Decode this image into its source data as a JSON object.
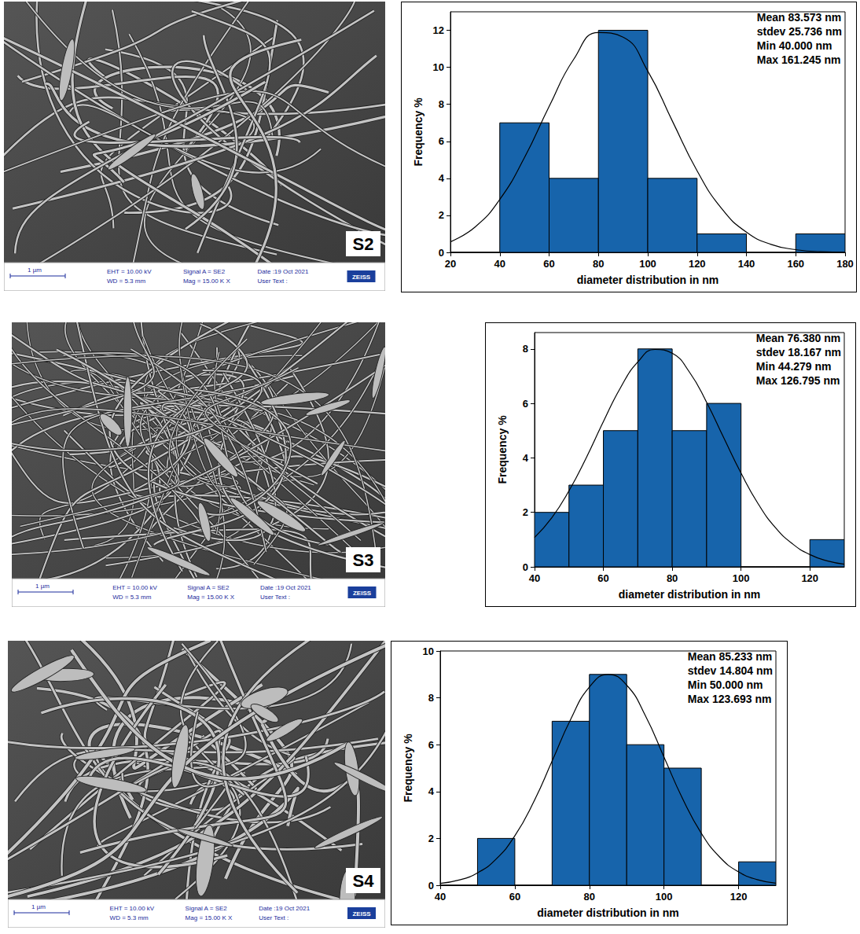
{
  "images": [
    {
      "label": "S2",
      "scale_bar": "1 µm",
      "info": [
        "EHT = 10.00 kV",
        "WD = 5.3 mm",
        "Signal A = SE2",
        "Mag = 15.00 K X",
        "Date :19 Oct 2021",
        "User Text :"
      ],
      "logo": "ZEISS"
    },
    {
      "label": "S3",
      "scale_bar": "1 µm",
      "info": [
        "EHT = 10.00 kV",
        "WD = 5.3 mm",
        "Signal A = SE2",
        "Mag = 15.00 K X",
        "Date :19 Oct 2021",
        "User Text :"
      ],
      "logo": "ZEISS"
    },
    {
      "label": "S4",
      "scale_bar": "1 µm",
      "info": [
        "EHT = 10.00 kV",
        "WD = 5.3 mm",
        "Signal A = SE2",
        "Mag = 15.00 K X",
        "Date :19 Oct 2021",
        "User Text :"
      ],
      "logo": "ZEISS"
    }
  ],
  "chart_data": [
    {
      "type": "histogram",
      "bins": [
        20,
        40,
        60,
        80,
        100,
        120,
        140,
        160,
        180
      ],
      "counts": [
        0,
        7,
        4,
        12,
        4,
        1,
        0,
        1
      ],
      "color": "#1764ab",
      "curve": {
        "x": [
          20,
          30,
          40,
          50,
          60,
          70,
          80,
          90,
          100,
          110,
          120,
          130,
          140,
          150,
          160,
          170,
          180
        ],
        "y": [
          0.57,
          1.37,
          2.86,
          5.12,
          7.88,
          10.44,
          11.88,
          11.63,
          9.8,
          7.09,
          4.41,
          2.36,
          1.09,
          0.43,
          0.15,
          0.04,
          0.01
        ]
      },
      "stats": [
        "Mean 83.573 nm",
        "stdev 25.736 nm",
        "Min 40.000 nm",
        "Max 161.245 nm"
      ],
      "x_label": "diameter distribution in nm",
      "y_label": "Frequency %",
      "xlim": [
        20,
        180
      ],
      "xticks": [
        20,
        40,
        60,
        80,
        100,
        120,
        140,
        160,
        180
      ],
      "ylim": [
        0,
        13
      ],
      "yticks": [
        0,
        2,
        4,
        6,
        8,
        10,
        12
      ]
    },
    {
      "type": "histogram",
      "bins": [
        40,
        50,
        60,
        70,
        80,
        90,
        100,
        110,
        120,
        130
      ],
      "counts": [
        2,
        3,
        5,
        8,
        5,
        6,
        0,
        0,
        1
      ],
      "color": "#1764ab",
      "curve": {
        "x": [
          40,
          45,
          50,
          55,
          60,
          65,
          70,
          75,
          80,
          85,
          90,
          95,
          100,
          105,
          110,
          115,
          120,
          125,
          130
        ],
        "y": [
          1.08,
          1.8,
          2.79,
          4.0,
          5.33,
          6.58,
          7.52,
          7.98,
          7.84,
          7.15,
          6.04,
          4.73,
          3.44,
          2.31,
          1.44,
          0.84,
          0.45,
          0.22,
          0.1
        ]
      },
      "stats": [
        "Mean 76.380 nm",
        "stdev 18.167 nm",
        "Min 44.279 nm",
        "Max 126.795 nm"
      ],
      "x_label": "diameter distribution in nm",
      "y_label": "Frequency %",
      "xlim": [
        40,
        130
      ],
      "xticks": [
        40,
        60,
        80,
        100,
        120
      ],
      "ylim": [
        0,
        8.6
      ],
      "yticks": [
        0,
        2,
        4,
        6,
        8
      ]
    },
    {
      "type": "histogram",
      "bins": [
        40,
        50,
        60,
        70,
        80,
        90,
        100,
        110,
        120,
        130
      ],
      "counts": [
        0,
        2,
        0,
        7,
        9,
        6,
        5,
        0,
        1
      ],
      "color": "#1764ab",
      "curve": {
        "x": [
          40,
          45,
          50,
          55,
          60,
          65,
          70,
          75,
          80,
          85,
          90,
          95,
          100,
          105,
          110,
          115,
          120,
          125,
          130
        ],
        "y": [
          0.08,
          0.22,
          0.53,
          1.12,
          2.11,
          3.54,
          5.3,
          7.09,
          8.46,
          9.0,
          8.54,
          7.24,
          5.47,
          3.69,
          2.22,
          1.19,
          0.57,
          0.24,
          0.09
        ]
      },
      "stats": [
        "Mean 85.233 nm",
        "stdev 14.804 nm",
        "Min 50.000 nm",
        "Max 123.693 nm"
      ],
      "x_label": "diameter distribution in nm",
      "y_label": "Frequency %",
      "xlim": [
        40,
        130
      ],
      "xticks": [
        40,
        60,
        80,
        100,
        120
      ],
      "ylim": [
        0,
        10
      ],
      "yticks": [
        0,
        2,
        4,
        6,
        8,
        10
      ]
    }
  ]
}
